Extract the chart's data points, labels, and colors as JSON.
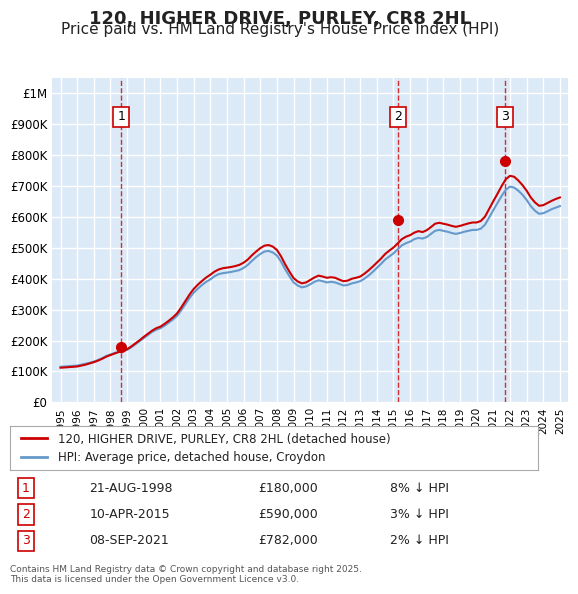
{
  "title": "120, HIGHER DRIVE, PURLEY, CR8 2HL",
  "subtitle": "Price paid vs. HM Land Registry's House Price Index (HPI)",
  "title_fontsize": 13,
  "subtitle_fontsize": 11,
  "background_color": "#ffffff",
  "plot_bg_color": "#dce9f7",
  "grid_color": "#ffffff",
  "hpi_color": "#6699cc",
  "price_color": "#cc0000",
  "marker_color": "#cc0000",
  "ylim": [
    0,
    1050000
  ],
  "yticks": [
    0,
    100000,
    200000,
    300000,
    400000,
    500000,
    600000,
    700000,
    800000,
    900000,
    1000000
  ],
  "ytick_labels": [
    "£0",
    "£100K",
    "£200K",
    "£300K",
    "£400K",
    "£500K",
    "£600K",
    "£700K",
    "£800K",
    "£900K",
    "£1M"
  ],
  "xlim_start": 1994.5,
  "xlim_end": 2025.5,
  "xticks": [
    1995,
    1996,
    1997,
    1998,
    1999,
    2000,
    2001,
    2002,
    2003,
    2004,
    2005,
    2006,
    2007,
    2008,
    2009,
    2010,
    2011,
    2012,
    2013,
    2014,
    2015,
    2016,
    2017,
    2018,
    2019,
    2020,
    2021,
    2022,
    2023,
    2024,
    2025
  ],
  "sale_dates": [
    1998.64,
    2015.27,
    2021.69
  ],
  "sale_prices": [
    180000,
    590000,
    782000
  ],
  "sale_labels": [
    "1",
    "2",
    "3"
  ],
  "sale_date_strings": [
    "21-AUG-1998",
    "10-APR-2015",
    "08-SEP-2021"
  ],
  "sale_price_strings": [
    "£180,000",
    "£590,000",
    "£782,000"
  ],
  "sale_hpi_strings": [
    "8% ↓ HPI",
    "3% ↓ HPI",
    "2% ↓ HPI"
  ],
  "legend_label_price": "120, HIGHER DRIVE, PURLEY, CR8 2HL (detached house)",
  "legend_label_hpi": "HPI: Average price, detached house, Croydon",
  "footer_text": "Contains HM Land Registry data © Crown copyright and database right 2025.\nThis data is licensed under the Open Government Licence v3.0.",
  "hpi_data_x": [
    1995.0,
    1995.25,
    1995.5,
    1995.75,
    1996.0,
    1996.25,
    1996.5,
    1996.75,
    1997.0,
    1997.25,
    1997.5,
    1997.75,
    1998.0,
    1998.25,
    1998.5,
    1998.75,
    1999.0,
    1999.25,
    1999.5,
    1999.75,
    2000.0,
    2000.25,
    2000.5,
    2000.75,
    2001.0,
    2001.25,
    2001.5,
    2001.75,
    2002.0,
    2002.25,
    2002.5,
    2002.75,
    2003.0,
    2003.25,
    2003.5,
    2003.75,
    2004.0,
    2004.25,
    2004.5,
    2004.75,
    2005.0,
    2005.25,
    2005.5,
    2005.75,
    2006.0,
    2006.25,
    2006.5,
    2006.75,
    2007.0,
    2007.25,
    2007.5,
    2007.75,
    2008.0,
    2008.25,
    2008.5,
    2008.75,
    2009.0,
    2009.25,
    2009.5,
    2009.75,
    2010.0,
    2010.25,
    2010.5,
    2010.75,
    2011.0,
    2011.25,
    2011.5,
    2011.75,
    2012.0,
    2012.25,
    2012.5,
    2012.75,
    2013.0,
    2013.25,
    2013.5,
    2013.75,
    2014.0,
    2014.25,
    2014.5,
    2014.75,
    2015.0,
    2015.25,
    2015.5,
    2015.75,
    2016.0,
    2016.25,
    2016.5,
    2016.75,
    2017.0,
    2017.25,
    2017.5,
    2017.75,
    2018.0,
    2018.25,
    2018.5,
    2018.75,
    2019.0,
    2019.25,
    2019.5,
    2019.75,
    2020.0,
    2020.25,
    2020.5,
    2020.75,
    2021.0,
    2021.25,
    2021.5,
    2021.75,
    2022.0,
    2022.25,
    2022.5,
    2022.75,
    2023.0,
    2023.25,
    2023.5,
    2023.75,
    2024.0,
    2024.25,
    2024.5,
    2024.75,
    2025.0
  ],
  "hpi_data_y": [
    115000,
    116000,
    117000,
    118000,
    119000,
    122000,
    125000,
    128000,
    132000,
    137000,
    143000,
    150000,
    155000,
    160000,
    163000,
    166000,
    170000,
    178000,
    188000,
    198000,
    208000,
    218000,
    228000,
    235000,
    240000,
    248000,
    258000,
    268000,
    280000,
    298000,
    318000,
    338000,
    355000,
    368000,
    380000,
    390000,
    398000,
    408000,
    415000,
    418000,
    420000,
    422000,
    425000,
    428000,
    435000,
    445000,
    458000,
    470000,
    480000,
    488000,
    490000,
    485000,
    475000,
    455000,
    430000,
    408000,
    388000,
    378000,
    372000,
    375000,
    382000,
    390000,
    395000,
    392000,
    388000,
    390000,
    388000,
    383000,
    378000,
    380000,
    385000,
    388000,
    392000,
    400000,
    410000,
    422000,
    435000,
    448000,
    462000,
    472000,
    482000,
    495000,
    508000,
    515000,
    520000,
    528000,
    532000,
    530000,
    535000,
    545000,
    555000,
    558000,
    555000,
    552000,
    548000,
    545000,
    548000,
    552000,
    555000,
    558000,
    558000,
    562000,
    575000,
    598000,
    622000,
    645000,
    668000,
    688000,
    698000,
    695000,
    685000,
    672000,
    655000,
    635000,
    620000,
    610000,
    612000,
    618000,
    625000,
    630000,
    635000
  ],
  "price_data_x": [
    1995.0,
    1995.25,
    1995.5,
    1995.75,
    1996.0,
    1996.25,
    1996.5,
    1996.75,
    1997.0,
    1997.25,
    1997.5,
    1997.75,
    1998.0,
    1998.25,
    1998.5,
    1998.75,
    1999.0,
    1999.25,
    1999.5,
    1999.75,
    2000.0,
    2000.25,
    2000.5,
    2000.75,
    2001.0,
    2001.25,
    2001.5,
    2001.75,
    2002.0,
    2002.25,
    2002.5,
    2002.75,
    2003.0,
    2003.25,
    2003.5,
    2003.75,
    2004.0,
    2004.25,
    2004.5,
    2004.75,
    2005.0,
    2005.25,
    2005.5,
    2005.75,
    2006.0,
    2006.25,
    2006.5,
    2006.75,
    2007.0,
    2007.25,
    2007.5,
    2007.75,
    2008.0,
    2008.25,
    2008.5,
    2008.75,
    2009.0,
    2009.25,
    2009.5,
    2009.75,
    2010.0,
    2010.25,
    2010.5,
    2010.75,
    2011.0,
    2011.25,
    2011.5,
    2011.75,
    2012.0,
    2012.25,
    2012.5,
    2012.75,
    2013.0,
    2013.25,
    2013.5,
    2013.75,
    2014.0,
    2014.25,
    2014.5,
    2014.75,
    2015.0,
    2015.25,
    2015.5,
    2015.75,
    2016.0,
    2016.25,
    2016.5,
    2016.75,
    2017.0,
    2017.25,
    2017.5,
    2017.75,
    2018.0,
    2018.25,
    2018.5,
    2018.75,
    2019.0,
    2019.25,
    2019.5,
    2019.75,
    2020.0,
    2020.25,
    2020.5,
    2020.75,
    2021.0,
    2021.25,
    2021.5,
    2021.75,
    2022.0,
    2022.25,
    2022.5,
    2022.75,
    2023.0,
    2023.25,
    2023.5,
    2023.75,
    2024.0,
    2024.25,
    2024.5,
    2024.75,
    2025.0
  ],
  "price_data_y": [
    112000,
    113000,
    114000,
    115000,
    116000,
    119000,
    122000,
    126000,
    130000,
    135000,
    141000,
    148000,
    153000,
    158000,
    163000,
    167000,
    172000,
    181000,
    191000,
    201000,
    212000,
    222000,
    232000,
    240000,
    245000,
    254000,
    264000,
    275000,
    288000,
    307000,
    328000,
    349000,
    367000,
    381000,
    393000,
    404000,
    413000,
    423000,
    430000,
    434000,
    436000,
    438000,
    441000,
    445000,
    452000,
    462000,
    476000,
    488000,
    499000,
    507000,
    509000,
    504000,
    493000,
    472000,
    446000,
    423000,
    402000,
    391000,
    385000,
    388000,
    396000,
    404000,
    410000,
    407000,
    403000,
    405000,
    403000,
    397000,
    392000,
    394000,
    400000,
    403000,
    407000,
    416000,
    427000,
    439000,
    452000,
    465000,
    480000,
    491000,
    501000,
    514000,
    528000,
    536000,
    541000,
    549000,
    554000,
    551000,
    557000,
    567000,
    578000,
    581000,
    578000,
    575000,
    571000,
    568000,
    571000,
    575000,
    579000,
    582000,
    582000,
    587000,
    601000,
    626000,
    651000,
    675000,
    700000,
    722000,
    733000,
    730000,
    718000,
    703000,
    685000,
    663000,
    647000,
    636000,
    638000,
    645000,
    652000,
    658000,
    663000
  ]
}
